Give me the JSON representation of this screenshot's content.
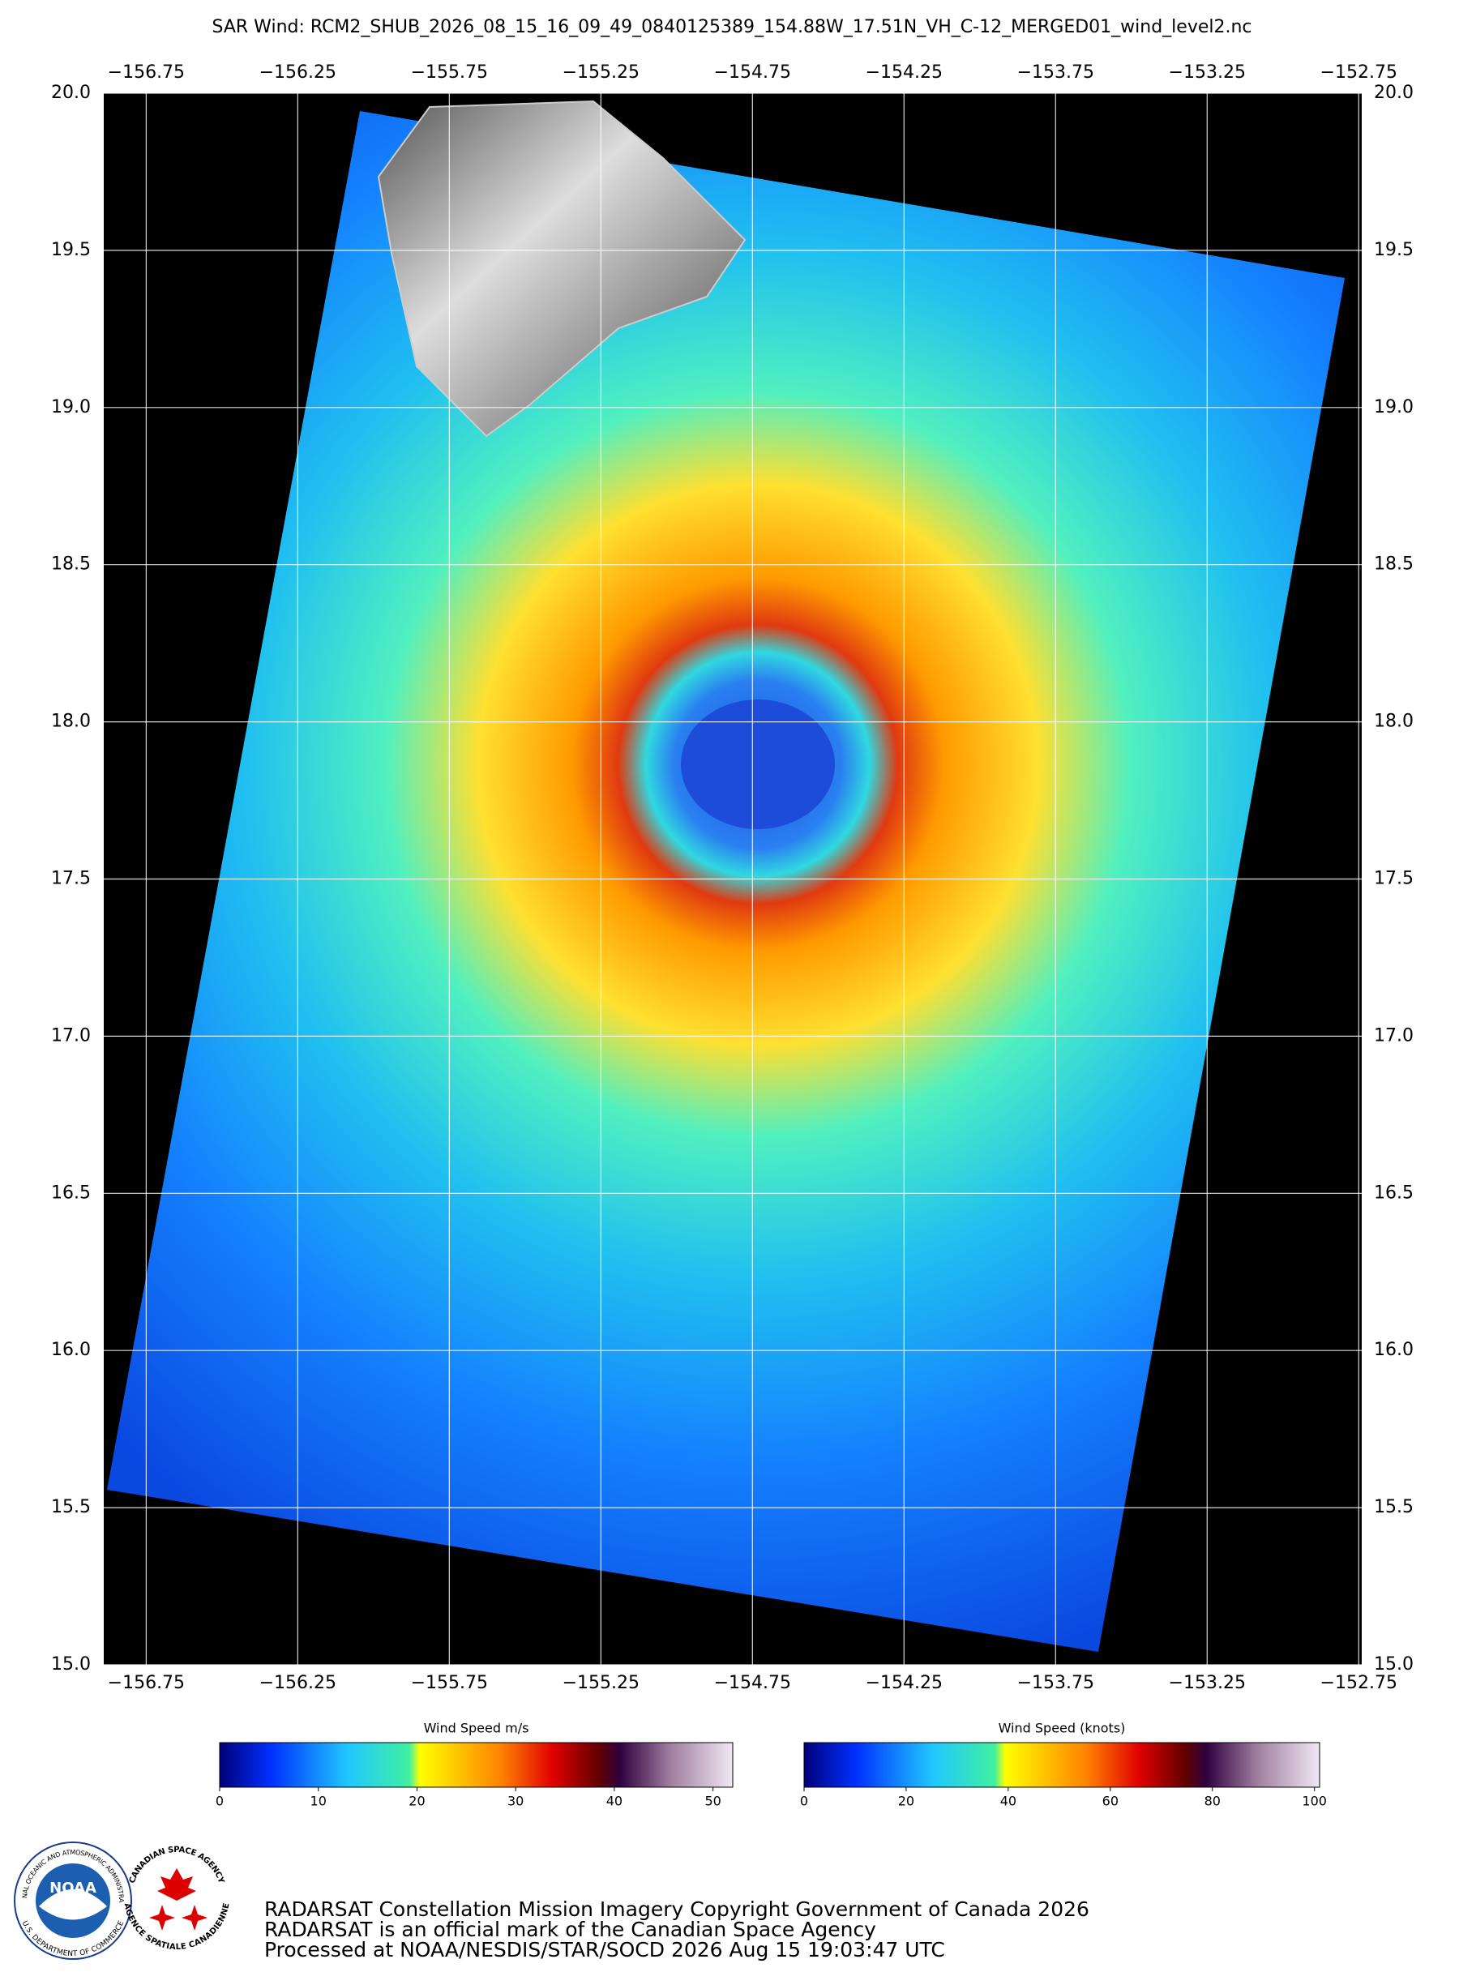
{
  "header": {
    "title": "SAR Wind: RCM2_SHUB_2026_08_15_16_09_49_0840125389_154.88W_17.51N_VH_C-12_MERGED01_wind_level2.nc"
  },
  "map": {
    "xlim": [
      -156.89,
      -152.74
    ],
    "ylim": [
      15.0,
      20.0
    ],
    "xticks": [
      {
        "value": -156.75,
        "label": "−156.75"
      },
      {
        "value": -156.25,
        "label": "−156.25"
      },
      {
        "value": -155.75,
        "label": "−155.75"
      },
      {
        "value": -155.25,
        "label": "−155.25"
      },
      {
        "value": -154.75,
        "label": "−154.75"
      },
      {
        "value": -154.25,
        "label": "−154.25"
      },
      {
        "value": -153.75,
        "label": "−153.75"
      },
      {
        "value": -153.25,
        "label": "−153.25"
      },
      {
        "value": -152.75,
        "label": "−152.75"
      }
    ],
    "yticks": [
      {
        "value": 20,
        "label": "20.0"
      },
      19.5,
      {
        "value": 19,
        "label": "19.0"
      },
      18.5,
      {
        "value": 18,
        "label": "18.0"
      },
      17.5,
      {
        "value": 17,
        "label": "17.0"
      },
      16.5,
      {
        "value": 16,
        "label": "16.0"
      },
      15.5,
      {
        "value": 15,
        "label": "15.0"
      }
    ]
  },
  "colorbars": [
    {
      "title": "Wind Speed m/s",
      "lim": [
        0,
        52
      ],
      "ticks": [
        0,
        10,
        20,
        30,
        40,
        50
      ]
    },
    {
      "title": "Wind Speed (knots)",
      "lim": [
        0,
        101
      ],
      "ticks": [
        0,
        20,
        40,
        60,
        80,
        100
      ]
    }
  ],
  "logos": {
    "noaa": {
      "name": "NOAA",
      "ring_top": "NATIONAL OCEANIC AND ATMOSPHERIC ADMINISTRATION",
      "ring_bottom": "U.S. DEPARTMENT OF COMMERCE"
    },
    "csa": {
      "ring_top": "CANADIAN SPACE AGENCY",
      "ring_bottom": "AGENCE SPATIALE CANADIENNE"
    }
  },
  "footer": {
    "lines": [
      "RADARSAT Constellation Mission Imagery Copyright Government of Canada 2026",
      "RADARSAT is an official mark of the Canadian Space Agency",
      "Processed at NOAA/NESDIS/STAR/SOCD 2026 Aug 15 19:03:47 UTC"
    ]
  }
}
